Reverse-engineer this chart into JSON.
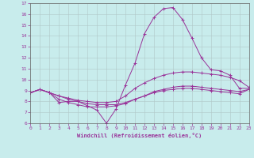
{
  "xlabel": "Windchill (Refroidissement éolien,°C)",
  "background_color": "#c8ecec",
  "grid_color": "#b0c8c8",
  "line_color": "#993399",
  "xlim": [
    0,
    23
  ],
  "ylim": [
    6,
    17
  ],
  "yticks": [
    6,
    7,
    8,
    9,
    10,
    11,
    12,
    13,
    14,
    15,
    16,
    17
  ],
  "xticks": [
    0,
    1,
    2,
    3,
    4,
    5,
    6,
    7,
    8,
    9,
    10,
    11,
    12,
    13,
    14,
    15,
    16,
    17,
    18,
    19,
    20,
    21,
    22,
    23
  ],
  "line1_x": [
    0,
    1,
    2,
    3,
    4,
    5,
    6,
    7,
    8,
    9,
    10,
    11,
    12,
    13,
    14,
    15,
    16,
    17,
    18,
    19,
    20,
    21,
    22,
    23
  ],
  "line1_y": [
    8.8,
    9.1,
    8.8,
    7.9,
    8.0,
    8.0,
    7.6,
    7.2,
    6.0,
    7.3,
    9.5,
    11.5,
    14.2,
    15.7,
    16.5,
    16.6,
    15.5,
    13.8,
    12.0,
    10.9,
    10.8,
    10.4,
    9.2,
    9.2
  ],
  "line2_x": [
    0,
    1,
    2,
    3,
    4,
    5,
    6,
    7,
    8,
    9,
    10,
    11,
    12,
    13,
    14,
    15,
    16,
    17,
    18,
    19,
    20,
    21,
    22,
    23
  ],
  "line2_y": [
    8.8,
    9.1,
    8.8,
    8.5,
    8.3,
    8.1,
    8.0,
    7.9,
    7.9,
    8.0,
    8.5,
    9.2,
    9.7,
    10.1,
    10.4,
    10.6,
    10.7,
    10.7,
    10.6,
    10.5,
    10.4,
    10.2,
    9.9,
    9.3
  ],
  "line3_x": [
    0,
    1,
    2,
    3,
    4,
    5,
    6,
    7,
    8,
    9,
    10,
    11,
    12,
    13,
    14,
    15,
    16,
    17,
    18,
    19,
    20,
    21,
    22,
    23
  ],
  "line3_y": [
    8.8,
    9.1,
    8.8,
    8.5,
    8.2,
    8.0,
    7.8,
    7.7,
    7.7,
    7.7,
    7.9,
    8.2,
    8.5,
    8.9,
    9.1,
    9.3,
    9.4,
    9.4,
    9.3,
    9.2,
    9.1,
    9.0,
    8.9,
    9.1
  ],
  "line4_x": [
    0,
    1,
    2,
    3,
    4,
    5,
    6,
    7,
    8,
    9,
    10,
    11,
    12,
    13,
    14,
    15,
    16,
    17,
    18,
    19,
    20,
    21,
    22,
    23
  ],
  "line4_y": [
    8.8,
    9.1,
    8.8,
    8.2,
    7.9,
    7.7,
    7.5,
    7.5,
    7.5,
    7.6,
    7.8,
    8.2,
    8.5,
    8.8,
    9.0,
    9.1,
    9.2,
    9.2,
    9.1,
    9.0,
    8.9,
    8.8,
    8.7,
    9.1
  ],
  "tick_fontsize": 4.5,
  "xlabel_fontsize": 5.0
}
